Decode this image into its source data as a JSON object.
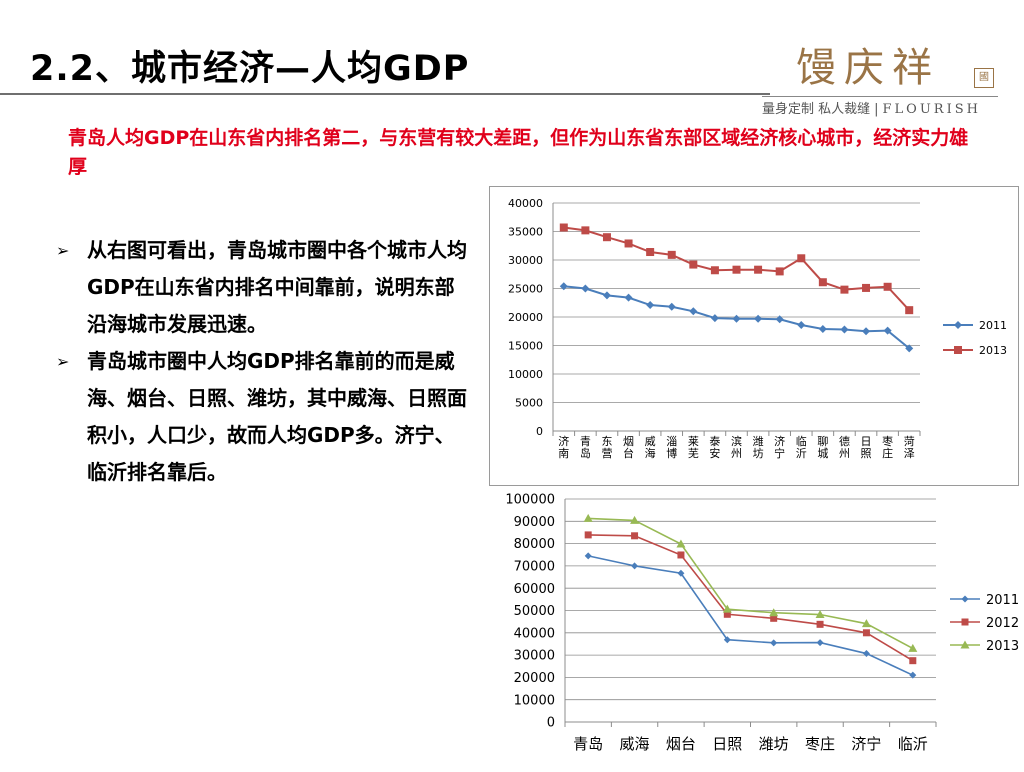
{
  "slide": {
    "title": "2.2、城市经济—人均GDP",
    "subtitle": "青岛人均GDP在山东省内排名第二，与东营有较大差距，但作为山东省东部区域经济核心城市，经济实力雄厚",
    "bullets": [
      {
        "marker": "➢",
        "text": "从右图可看出，青岛城市圈中各个城市人均GDP在山东省内排名中间靠前，说明东部沿海城市发展迅速。"
      },
      {
        "marker": "➢",
        "text": "青岛城市圈中人均GDP排名靠前的而是威海、烟台、日照、潍坊，其中威海、日照面积小，人口少，故而人均GDP多。济宁、临沂排名靠后。"
      }
    ]
  },
  "logo": {
    "main": "馒庆祥",
    "seal": "國",
    "tagline_cn": "量身定制 私人裁缝",
    "separator": "|",
    "tagline_en": "FLOURISH"
  },
  "chart_data": [
    {
      "type": "line",
      "categories": [
        "济南",
        "青岛",
        "东营",
        "烟台",
        "威海",
        "淄博",
        "莱芜",
        "泰安",
        "滨州",
        "潍坊",
        "济宁",
        "临沂",
        "聊城",
        "德州",
        "日照",
        "枣庄",
        "菏泽"
      ],
      "series": [
        {
          "name": "2011",
          "color": "#4a7ebb",
          "marker": "diamond",
          "values": [
            25400,
            25000,
            23800,
            23400,
            22100,
            21800,
            21000,
            19800,
            19700,
            19700,
            19600,
            18600,
            17900,
            17800,
            17500,
            17600,
            14500
          ]
        },
        {
          "name": "2013",
          "color": "#be4b48",
          "marker": "square",
          "values": [
            35700,
            35200,
            34000,
            32900,
            31400,
            30900,
            29200,
            28200,
            28300,
            28300,
            28000,
            30300,
            26100,
            24800,
            25100,
            25300,
            21200
          ]
        }
      ],
      "ylim": [
        0,
        40000
      ],
      "yticks": [
        0,
        5000,
        10000,
        15000,
        20000,
        25000,
        30000,
        35000,
        40000
      ],
      "grid": true,
      "legend": "right"
    },
    {
      "type": "line",
      "categories": [
        "青岛",
        "威海",
        "烟台",
        "日照",
        "潍坊",
        "枣庄",
        "济宁",
        "临沂"
      ],
      "series": [
        {
          "name": "2011",
          "color": "#4a7ebb",
          "marker": "diamond",
          "values": [
            74500,
            70000,
            66700,
            36900,
            35500,
            35600,
            30700,
            21000
          ]
        },
        {
          "name": "2012",
          "color": "#be4b48",
          "marker": "square",
          "values": [
            83900,
            83500,
            74900,
            48300,
            46500,
            43800,
            40000,
            27500
          ]
        },
        {
          "name": "2013",
          "color": "#98b954",
          "marker": "triangle",
          "values": [
            91300,
            90400,
            79800,
            50600,
            49000,
            48200,
            44100,
            33000
          ]
        }
      ],
      "ylim": [
        0,
        100000
      ],
      "yticks": [
        0,
        10000,
        20000,
        30000,
        40000,
        50000,
        60000,
        70000,
        80000,
        90000,
        100000
      ],
      "grid": true,
      "legend": "right"
    }
  ]
}
